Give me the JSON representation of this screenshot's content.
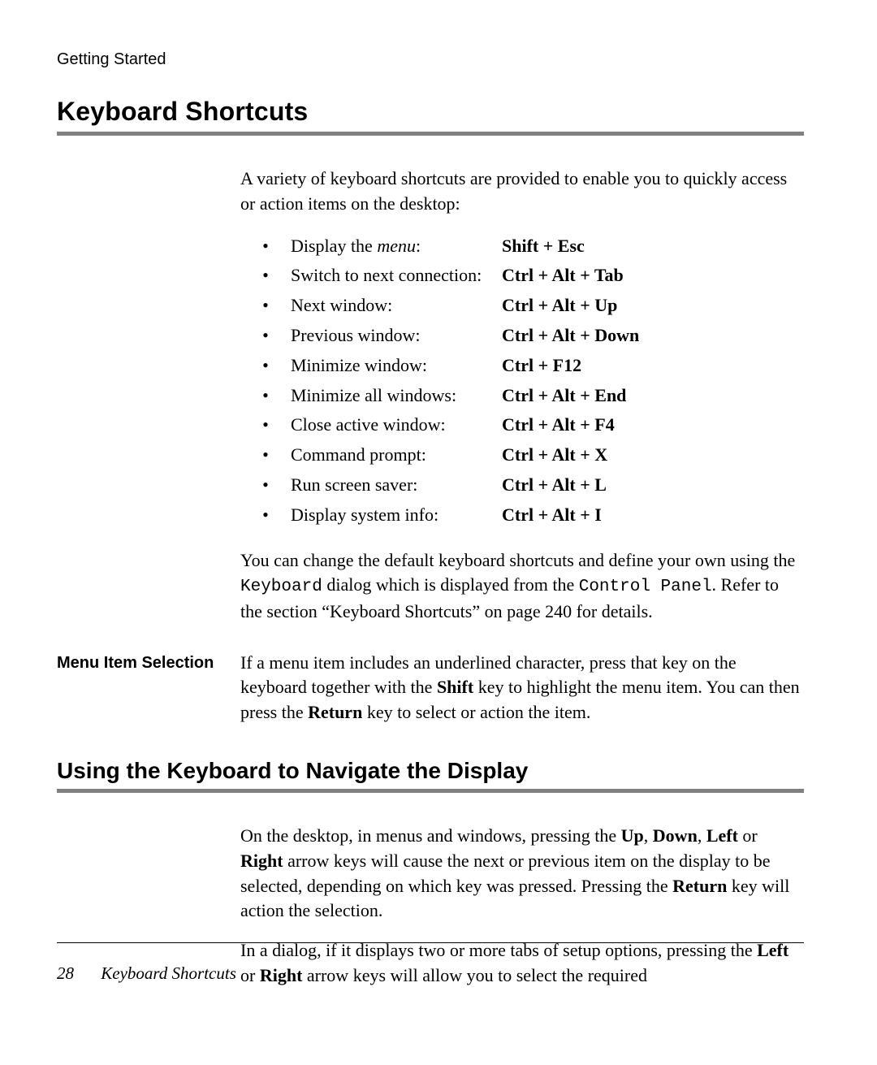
{
  "colors": {
    "rule": "#808080",
    "text": "#000000",
    "background": "#ffffff"
  },
  "header": {
    "running_head": "Getting Started"
  },
  "section1": {
    "title": "Keyboard Shortcuts",
    "intro": "A variety of keyboard shortcuts are provided to enable you to quickly access or action items on the desktop:",
    "shortcuts": [
      {
        "label_prefix": "Display the ",
        "label_italic": "menu",
        "label_suffix": ":",
        "key": "Shift + Esc"
      },
      {
        "label": "Switch to next connection:",
        "key": "Ctrl + Alt + Tab"
      },
      {
        "label": "Next window:",
        "key": "Ctrl + Alt + Up"
      },
      {
        "label": "Previous window:",
        "key": "Ctrl + Alt + Down"
      },
      {
        "label": "Minimize window:",
        "key": "Ctrl + F12"
      },
      {
        "label": "Minimize all windows:",
        "key": "Ctrl + Alt + End"
      },
      {
        "label": "Close active window:",
        "key": "Ctrl + Alt + F4"
      },
      {
        "label": "Command prompt:",
        "key": "Ctrl + Alt + X"
      },
      {
        "label": "Run screen saver:",
        "key": "Ctrl + Alt + L"
      },
      {
        "label": "Display system info:",
        "key": "Ctrl + Alt + I"
      }
    ],
    "para2_parts": {
      "a": "You can change the default keyboard shortcuts and define your own using the ",
      "mono1": "Keyboard",
      "b": " dialog which is displayed from the ",
      "mono2": "Control Panel",
      "c": ". Refer to the section “Keyboard Shortcuts” on page 240 for details."
    },
    "sub_label": "Menu Item Selection",
    "sub_body": {
      "a": "If a menu item includes an underlined character, press that key on the keyboard together with the ",
      "b1": "Shift",
      "c": " key to highlight the menu item. You can then press the ",
      "b2": "Return",
      "d": " key to select or action the item."
    }
  },
  "section2": {
    "title": "Using the Keyboard to Navigate the Display",
    "p1": {
      "a": "On the desktop, in menus and windows, pressing the ",
      "k1": "Up",
      "s1": ", ",
      "k2": "Down",
      "s2": ", ",
      "k3": "Left",
      "s3": " or ",
      "k4": "Right",
      "b": " arrow keys will cause the next or previous item on the display to be selected, depending on which key was pressed. Press­ing the ",
      "k5": "Return",
      "c": " key will action the selection."
    },
    "p2": {
      "a": "In a dialog, if it displays two or more tabs of setup options, pressing the ",
      "k1": "Left",
      "s1": " or ",
      "k2": "Right",
      "b": " arrow keys will allow you to select the required"
    }
  },
  "footer": {
    "page_number": "28",
    "title": "Keyboard Shortcuts"
  }
}
